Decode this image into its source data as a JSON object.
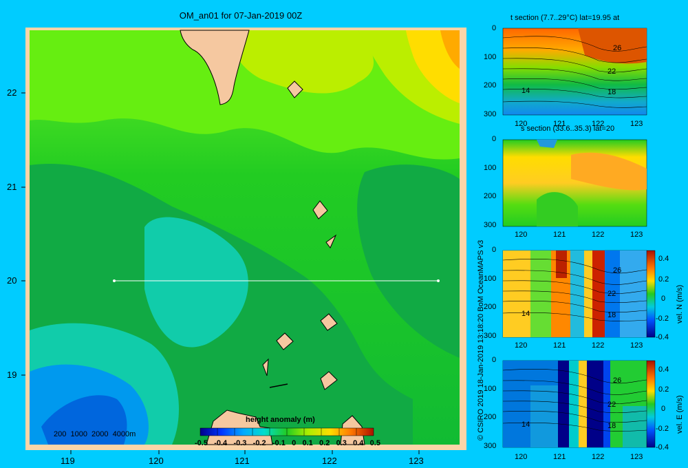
{
  "map": {
    "title": "OM_an01 for 07-Jan-2019 00Z",
    "lon_ticks": [
      "119",
      "120",
      "121",
      "122",
      "123"
    ],
    "lat_ticks": [
      "22",
      "21",
      "20",
      "19"
    ],
    "depth_legend": "200  1000  2000  4000m",
    "colorbar_title": "height anomaly  (m)",
    "colorbar_ticks": [
      "-0.5",
      "-0.4",
      "-0.3",
      "-0.2",
      "-0.1",
      "0",
      "0.1",
      "0.2",
      "0.3",
      "0.4",
      "0.5"
    ],
    "section_line_lat": "20",
    "colors": {
      "background": "#00ccff",
      "land": "#f5c8a0",
      "frame": "#fbd5a8"
    }
  },
  "credit": "© CSIRO 2019   18-Jan-2019 13:18:20 BoM OceanMAPS v3",
  "panels": [
    {
      "title": "t section (7.7..29°C) lat=19.95 at",
      "y_ticks": [
        "0",
        "100",
        "200",
        "300"
      ],
      "x_ticks": [
        "120",
        "121",
        "122",
        "123"
      ],
      "contour_labels": [
        "26",
        "22",
        "18",
        "14"
      ],
      "colorbar": null
    },
    {
      "title": "s section (33.6..35.3) lat=20",
      "y_ticks": [
        "0",
        "100",
        "200",
        "300"
      ],
      "x_ticks": [
        "120",
        "121",
        "122",
        "123"
      ],
      "contour_labels": [],
      "colorbar": null
    },
    {
      "title": "",
      "y_ticks": [
        "0",
        "100",
        "200",
        "300"
      ],
      "x_ticks": [
        "120",
        "121",
        "122",
        "123"
      ],
      "contour_labels": [
        "26",
        "22",
        "18",
        "14"
      ],
      "colorbar": {
        "label": "vel. N (m/s)",
        "ticks": [
          "0.4",
          "0.2",
          "0",
          "-0.2",
          "-0.4"
        ]
      }
    },
    {
      "title": "",
      "y_ticks": [
        "0",
        "100",
        "200",
        "300"
      ],
      "x_ticks": [
        "120",
        "121",
        "122",
        "123"
      ],
      "contour_labels": [
        "26",
        "22",
        "18",
        "14"
      ],
      "colorbar": {
        "label": "vel. E (m/s)",
        "ticks": [
          "0.4",
          "0.2",
          "0",
          "-0.2",
          "-0.4"
        ]
      }
    }
  ]
}
